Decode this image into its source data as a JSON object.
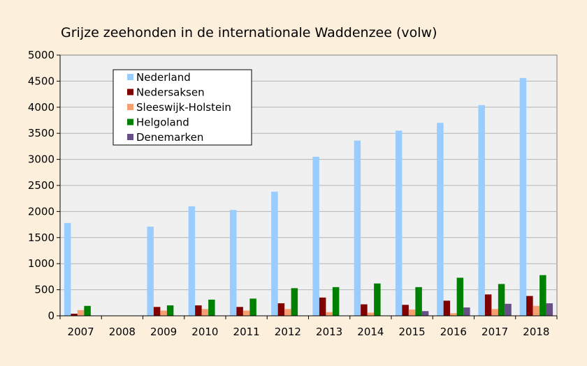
{
  "chart_data": {
    "type": "bar",
    "title": "Grijze zeehonden in de internationale Waddenzee (volw)",
    "xlabel": "",
    "ylabel": "",
    "ylim": [
      0,
      5000
    ],
    "yticks": [
      0,
      500,
      1000,
      1500,
      2000,
      2500,
      3000,
      3500,
      4000,
      4500,
      5000
    ],
    "grid": true,
    "legend_position": "top-left",
    "categories": [
      "2007",
      "2008",
      "2009",
      "2010",
      "2011",
      "2012",
      "2013",
      "2014",
      "2015",
      "2016",
      "2017",
      "2018"
    ],
    "series": [
      {
        "name": "Nederland",
        "color": "#99ccff",
        "values": [
          1780,
          0,
          1710,
          2100,
          2030,
          2380,
          3050,
          3360,
          3550,
          3700,
          4040,
          4560
        ]
      },
      {
        "name": "Nedersaksen",
        "color": "#800000",
        "values": [
          40,
          0,
          170,
          200,
          170,
          240,
          350,
          220,
          210,
          290,
          410,
          380
        ]
      },
      {
        "name": "Sleeswijk-Holstein",
        "color": "#f79f71",
        "values": [
          110,
          0,
          100,
          130,
          100,
          130,
          70,
          60,
          120,
          50,
          130,
          190
        ]
      },
      {
        "name": "Helgoland",
        "color": "#008000",
        "values": [
          190,
          0,
          200,
          310,
          330,
          530,
          550,
          620,
          550,
          730,
          610,
          780
        ]
      },
      {
        "name": "Denemarken",
        "color": "#674f86",
        "values": [
          0,
          0,
          0,
          0,
          0,
          0,
          0,
          0,
          90,
          160,
          230,
          240
        ]
      }
    ]
  }
}
